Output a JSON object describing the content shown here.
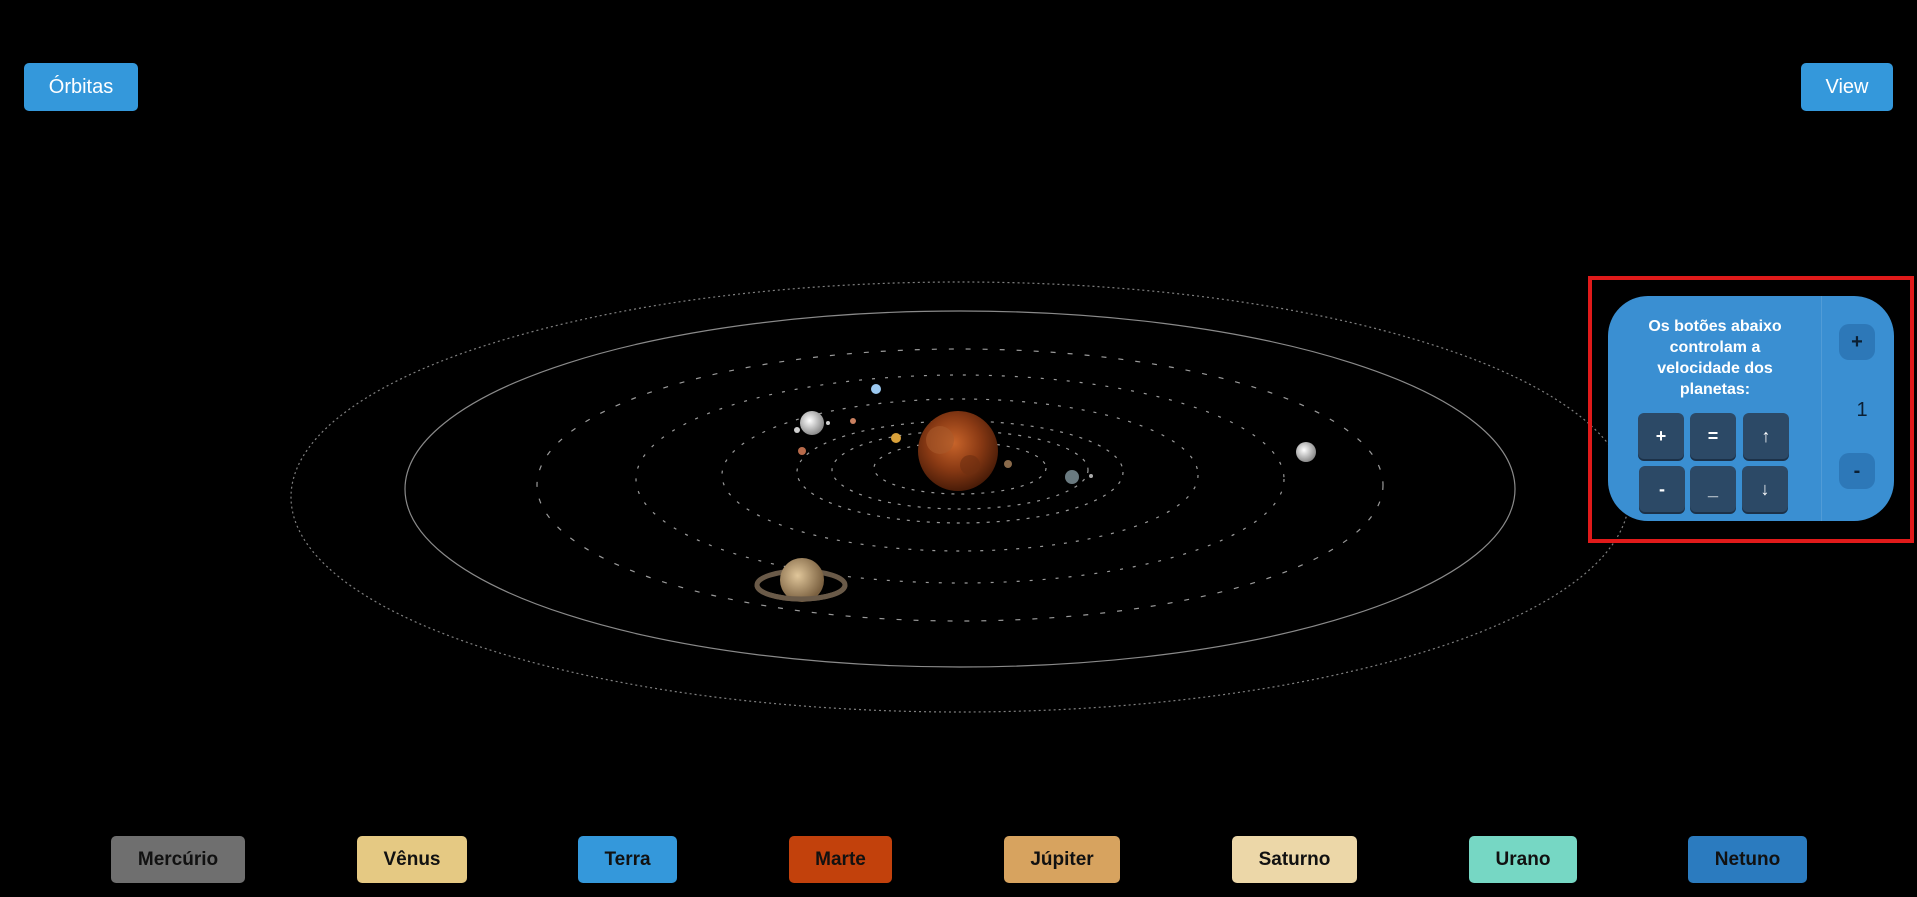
{
  "top_bar": {
    "orbits_label": "Órbitas",
    "view_label": "View"
  },
  "speed_panel": {
    "description": "Os botões abaixo controlam a velocidade dos planetas:",
    "keys_row1": [
      "+",
      "=",
      "↑"
    ],
    "keys_row2": [
      "-",
      "_",
      "↓"
    ],
    "increase_label": "+",
    "decrease_label": "-",
    "value": "1",
    "panel_color": "#3a8fd2",
    "highlight_color": "#e01a1a"
  },
  "planet_buttons": [
    {
      "label": "Mercúrio",
      "color": "#6f6f6f"
    },
    {
      "label": "Vênus",
      "color": "#e5c983"
    },
    {
      "label": "Terra",
      "color": "#3498db"
    },
    {
      "label": "Marte",
      "color": "#c2410c"
    },
    {
      "label": "Júpiter",
      "color": "#d7a35f"
    },
    {
      "label": "Saturno",
      "color": "#ecd7a8"
    },
    {
      "label": "Urano",
      "color": "#76d7c4"
    },
    {
      "label": "Netuno",
      "color": "#2b7bbf"
    }
  ]
}
